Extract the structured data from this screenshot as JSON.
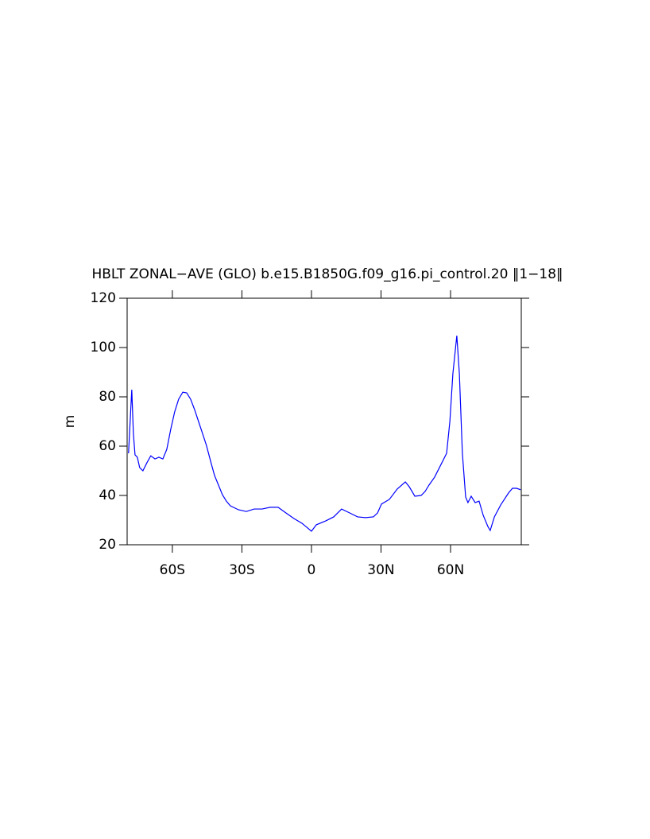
{
  "chart_data": {
    "type": "line",
    "title": "HBLT ZONAL−AVE (GLO) b.e15.B1850G.f09_g16.pi_control.20 ‖1−18‖",
    "ylabel": "m",
    "x": [
      -78.9,
      -78.2,
      -77.5,
      -76.8,
      -76.1,
      -75.1,
      -74.1,
      -72.7,
      -71,
      -69.3,
      -67.5,
      -65.8,
      -64.1,
      -62.4,
      -60.7,
      -59,
      -57.3,
      -55.5,
      -53.8,
      -52.1,
      -50.4,
      -48.7,
      -47,
      -45.3,
      -43.5,
      -41.8,
      -40.1,
      -38.4,
      -36.7,
      -35,
      -31.5,
      -28.1,
      -24.7,
      -21.3,
      -17.8,
      -14.4,
      -11,
      -7.5,
      -4.1,
      -2.4,
      0,
      2.1,
      6.2,
      9.6,
      13,
      16.5,
      19.9,
      23.3,
      26.7,
      28.5,
      30.2,
      33.6,
      37,
      40.5,
      42.2,
      44.6,
      47.3,
      49,
      50.7,
      53.1,
      55.9,
      58.3,
      59.7,
      61,
      62.7,
      63.8,
      65.1,
      66.5,
      67.5,
      68.9,
      70.6,
      72.3,
      74.1,
      76.1,
      77.1,
      78.9,
      81.6,
      85,
      86.7,
      88.5,
      90.2
    ],
    "series": [
      {
        "name": "HBLT",
        "color": "#0000ff",
        "values": [
          57.1,
          70,
          82.9,
          65,
          56.5,
          55.5,
          51.3,
          50,
          53.2,
          56.1,
          54.8,
          55.5,
          54.8,
          58.7,
          66.8,
          73.9,
          79,
          81.9,
          81.6,
          79,
          74.8,
          70,
          65.2,
          60.3,
          53.9,
          48.1,
          44.2,
          40.3,
          37.7,
          35.8,
          34.2,
          33.5,
          34.5,
          34.5,
          35.2,
          35.2,
          32.9,
          30.6,
          28.7,
          27.4,
          25.5,
          28.1,
          29.7,
          31.3,
          34.5,
          32.9,
          31.3,
          31,
          31.3,
          32.9,
          36.5,
          38.4,
          42.6,
          45.5,
          43.5,
          39.7,
          40,
          41.6,
          44.2,
          47.4,
          52.6,
          57.1,
          70,
          89.4,
          104.8,
          89.4,
          57.1,
          39.4,
          37.1,
          39.7,
          37.1,
          37.7,
          31.9,
          27.4,
          25.8,
          31.3,
          36.1,
          41,
          42.9,
          42.9,
          42.3
        ]
      }
    ],
    "xlim": [
      -79.5,
      90.5
    ],
    "xticks": [
      {
        "value": -60,
        "label": "60S"
      },
      {
        "value": -30,
        "label": "30S"
      },
      0,
      {
        "value": 30,
        "label": "30N"
      },
      {
        "value": 60,
        "label": "60N"
      }
    ],
    "ylim": [
      20,
      120
    ],
    "yticks": [
      20,
      40,
      60,
      80,
      100,
      120
    ]
  }
}
